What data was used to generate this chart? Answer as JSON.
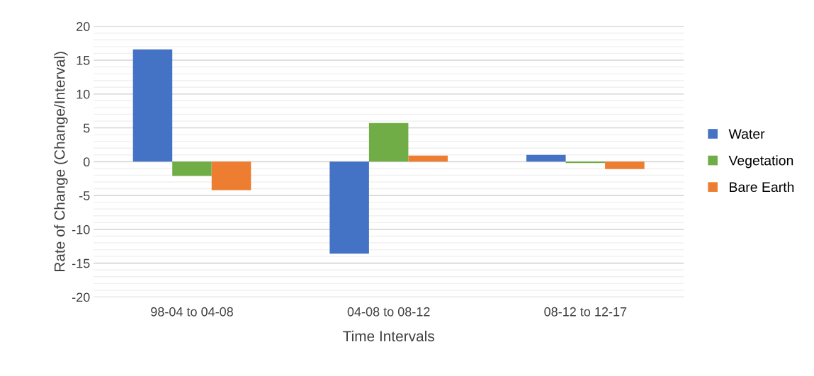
{
  "chart_data": {
    "type": "bar",
    "xlabel": "Time Intervals",
    "ylabel": "Rate of Change (Change/Interval)",
    "categories": [
      "98-04 to 04-08",
      "04-08 to 08-12",
      "08-12 to 12-17"
    ],
    "series": [
      {
        "name": "Water",
        "color": "#4472c4",
        "values": [
          16.6,
          -13.6,
          1.0
        ]
      },
      {
        "name": "Vegetation",
        "color": "#70ad47",
        "values": [
          -2.1,
          5.7,
          -0.2
        ]
      },
      {
        "name": "Bare Earth",
        "color": "#ed7d31",
        "values": [
          -4.2,
          0.9,
          -1.1
        ]
      }
    ],
    "ylim": [
      -20,
      20
    ],
    "yticks": [
      -20,
      -15,
      -10,
      -5,
      0,
      5,
      10,
      15,
      20
    ],
    "grid": "y",
    "legend": "right"
  }
}
